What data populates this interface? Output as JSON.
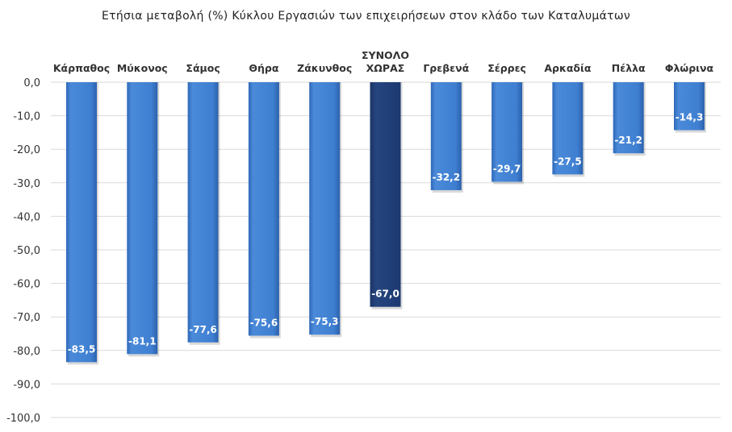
{
  "chart_data": {
    "type": "bar",
    "title": "Ετήσια μεταβολή (%) Κύκλου Εργασιών των επιχειρήσεων στον κλάδο των Καταλυμάτων",
    "categories": [
      "Κάρπαθος",
      "Μύκονος",
      "Σάμος",
      "Θήρα",
      "Ζάκυνθος",
      "ΣΥΝΟΛΟ ΧΩΡΑΣ",
      "Γρεβενά",
      "Σέρρες",
      "Αρκαδία",
      "Πέλλα",
      "Φλώρινα"
    ],
    "values": [
      -83.5,
      -81.1,
      -77.6,
      -75.6,
      -75.3,
      -67.0,
      -32.2,
      -29.7,
      -27.5,
      -21.2,
      -14.3
    ],
    "value_labels": [
      "-83,5",
      "-81,1",
      "-77,6",
      "-75,6",
      "-75,3",
      "-67,0",
      "-32,2",
      "-29,7",
      "-27,5",
      "-21,2",
      "-14,3"
    ],
    "ylim": [
      -100,
      0
    ],
    "yticks": [
      0,
      -10,
      -20,
      -30,
      -40,
      -50,
      -60,
      -70,
      -80,
      -90,
      -100
    ],
    "ytick_labels": [
      "0,0",
      "-10,0",
      "-20,0",
      "-30,0",
      "-40,0",
      "-50,0",
      "-60,0",
      "-70,0",
      "-80,0",
      "-90,0",
      "-100,0"
    ],
    "xlabel": "",
    "ylabel": "",
    "grid": true,
    "highlight_index": 5,
    "colors": {
      "bar": "#3f7fd1",
      "highlight": "#213f7a",
      "grid": "#d9d9d9"
    }
  }
}
